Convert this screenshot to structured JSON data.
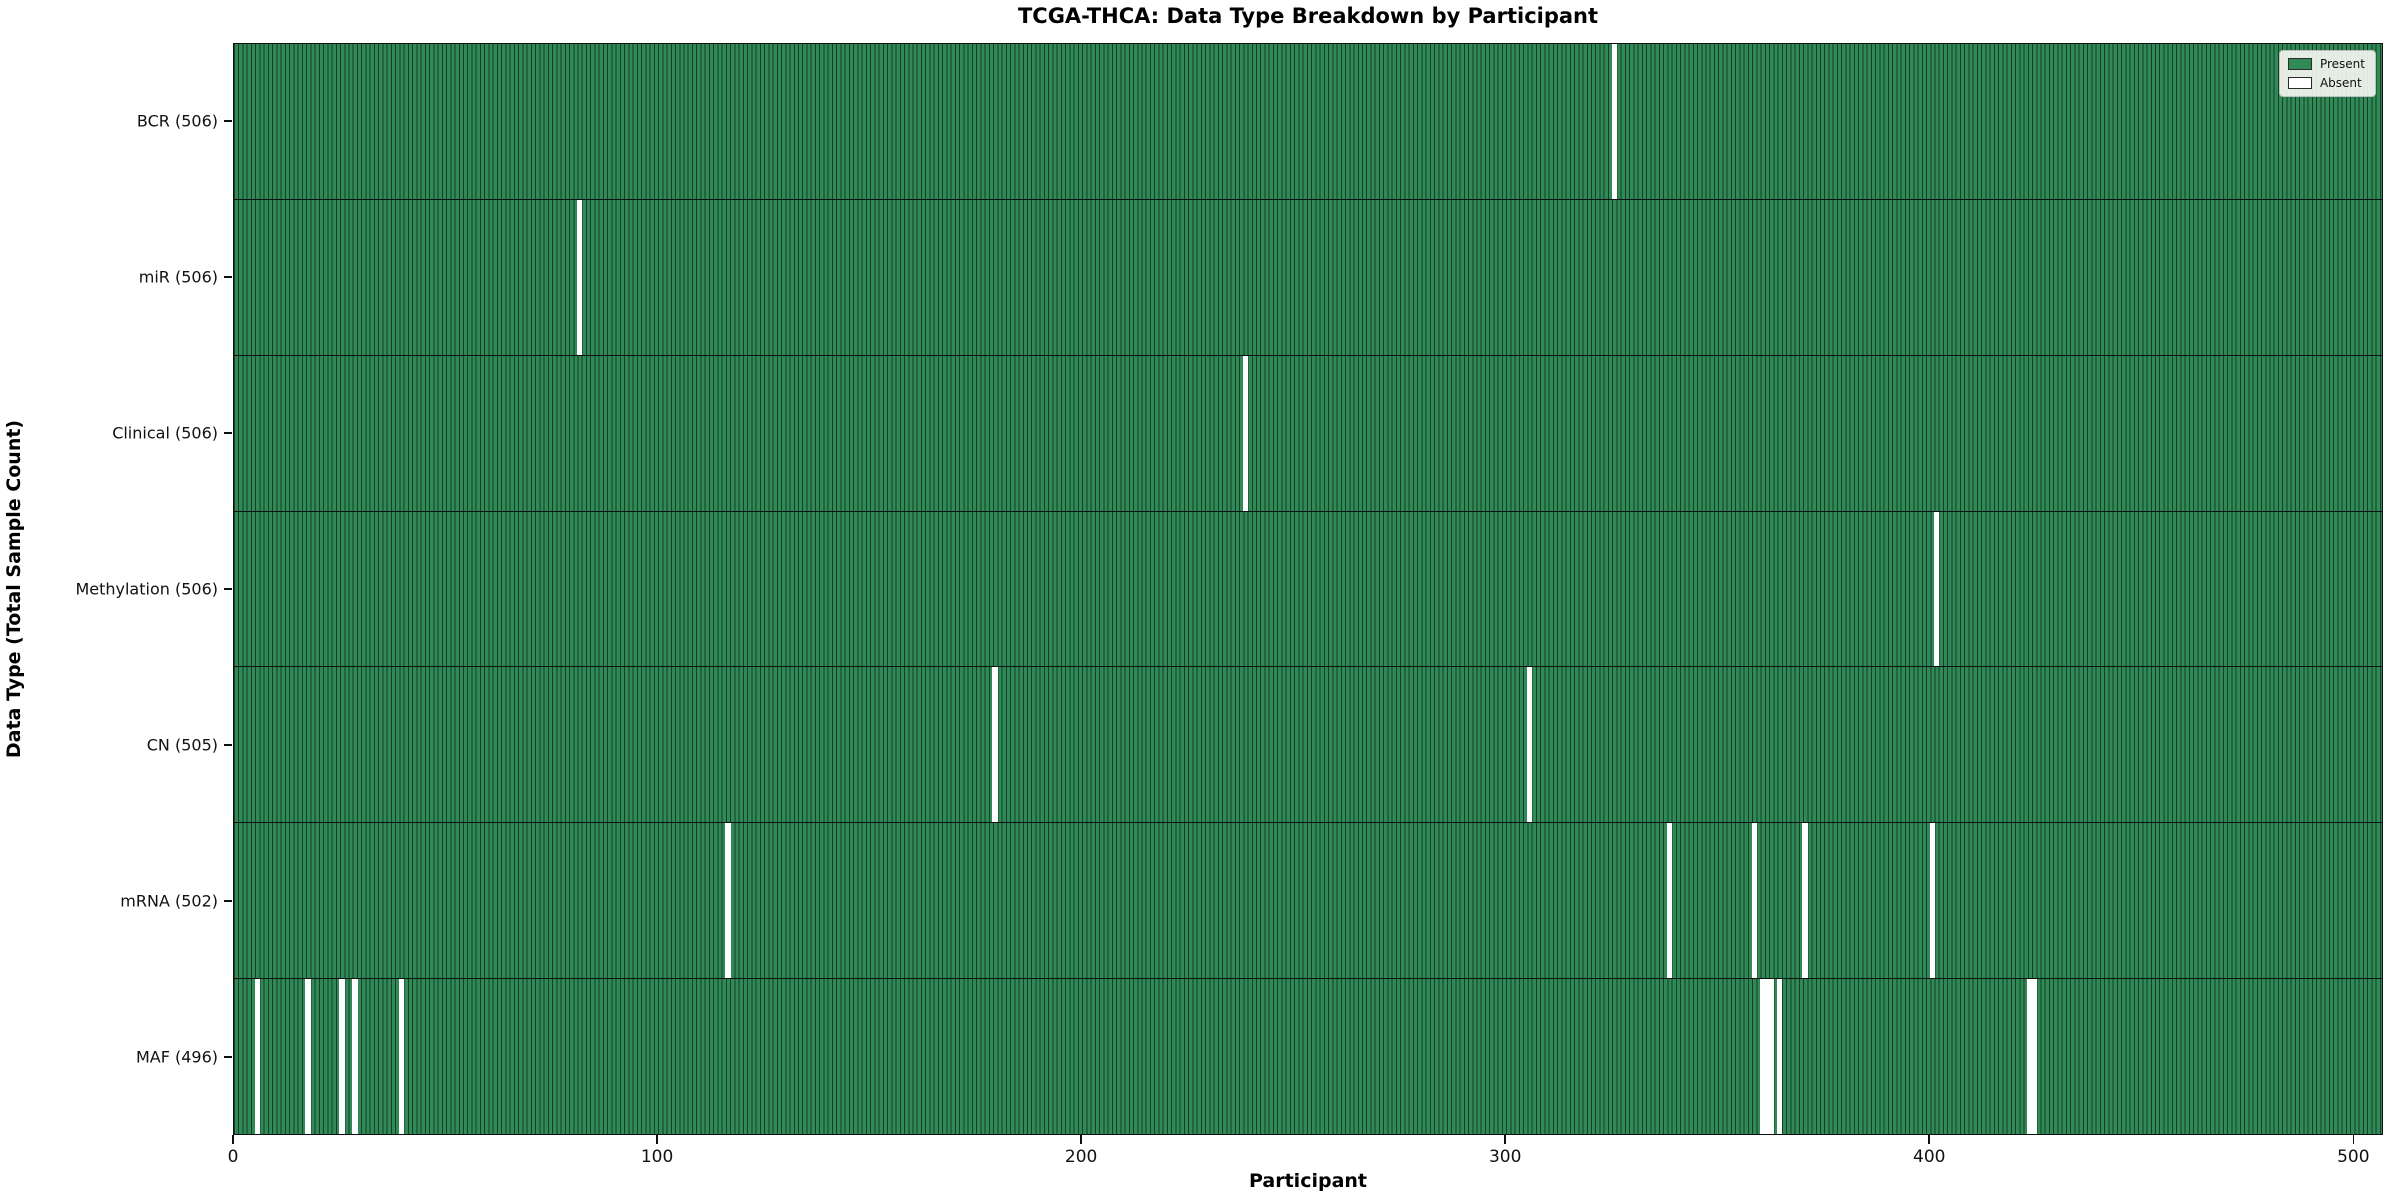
{
  "title": "TCGA-THCA: Data Type Breakdown by Participant",
  "chart_data": {
    "type": "heatmap",
    "title": "TCGA-THCA: Data Type Breakdown by Participant",
    "xlabel": "Participant",
    "ylabel": "Data Type (Total Sample Count)",
    "x_ticks": [
      0,
      100,
      200,
      300,
      400,
      500
    ],
    "x_range": [
      0,
      507
    ],
    "n_participants": 507,
    "grid": false,
    "legend": {
      "position": "upper right",
      "entries": [
        {
          "label": "Present",
          "color": "#2f8a57"
        },
        {
          "label": "Absent",
          "color": "#ffffff"
        }
      ]
    },
    "colors": {
      "present": "#2f8a57",
      "absent": "#ffffff",
      "bar_edge": "#173d27",
      "row_divider": "#101010"
    },
    "rows": [
      {
        "label": "BCR (506)",
        "data_type": "BCR",
        "total_samples": 506,
        "absent_participants": [
          325
        ]
      },
      {
        "label": "miR (506)",
        "data_type": "miR",
        "total_samples": 506,
        "absent_participants": [
          81
        ]
      },
      {
        "label": "Clinical (506)",
        "data_type": "Clinical",
        "total_samples": 506,
        "absent_participants": [
          238
        ]
      },
      {
        "label": "Methylation (506)",
        "data_type": "Methylation",
        "total_samples": 506,
        "absent_participants": [
          401
        ]
      },
      {
        "label": "CN (505)",
        "data_type": "CN",
        "total_samples": 505,
        "absent_participants": [
          179,
          305
        ]
      },
      {
        "label": "mRNA (502)",
        "data_type": "mRNA",
        "total_samples": 502,
        "absent_participants": [
          116,
          338,
          358,
          370,
          400
        ]
      },
      {
        "label": "MAF (496)",
        "data_type": "MAF",
        "total_samples": 496,
        "absent_participants": [
          5,
          17,
          25,
          28,
          39,
          360,
          361,
          362,
          364,
          423,
          424
        ]
      }
    ]
  }
}
